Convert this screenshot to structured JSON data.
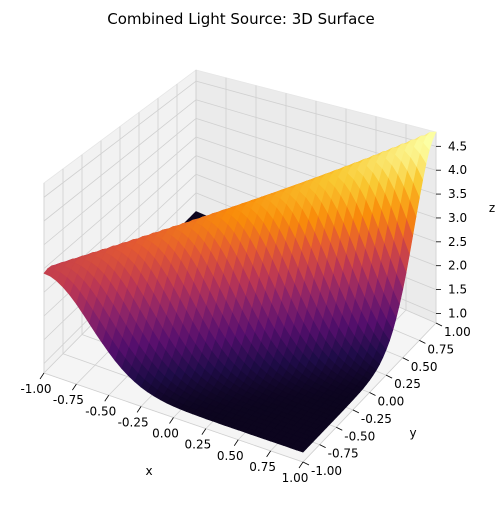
{
  "chart_data": {
    "type": "surface3d",
    "title": "Combined Light Source: 3D Surface",
    "xlabel": "x",
    "ylabel": "y",
    "zlabel": "z",
    "xlim": [
      -1.0,
      1.0
    ],
    "ylim": [
      -1.0,
      1.0
    ],
    "zlim": [
      0.8,
      4.8
    ],
    "x_ticks": [
      "-1.00",
      "-0.75",
      "-0.50",
      "-0.25",
      "0.00",
      "0.25",
      "0.50",
      "0.75",
      "1.00"
    ],
    "y_ticks": [
      "-1.00",
      "-0.75",
      "-0.50",
      "-0.25",
      "0.00",
      "0.25",
      "0.50",
      "0.75",
      "1.00"
    ],
    "z_ticks": [
      "1.0",
      "1.5",
      "2.0",
      "2.5",
      "3.0",
      "3.5",
      "4.0",
      "4.5"
    ],
    "colormap": "inferno",
    "grid": true,
    "surface_model": "z = 1 + 3.8 * exp(-4 * (x - y)^2) * (0.75 + 0.25 * y)",
    "z_range_shown": [
      0.8,
      4.8
    ]
  }
}
